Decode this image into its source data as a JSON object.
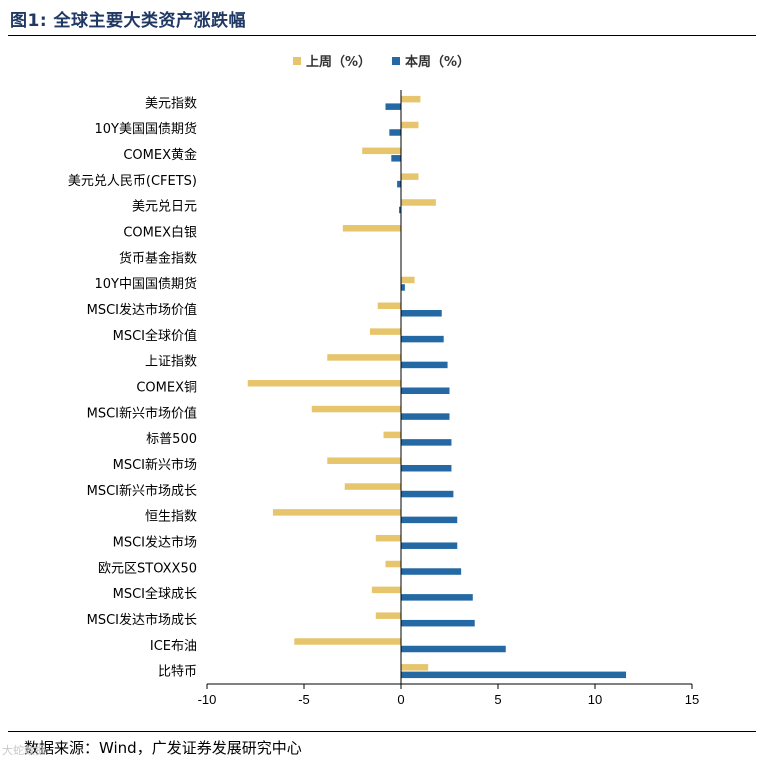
{
  "header": {
    "title": "图1:  全球主要大类资产涨跌幅"
  },
  "footer": {
    "source": "数据来源：Wind，广发证券发展研究中心",
    "watermark": "大蛇数据"
  },
  "colors": {
    "series_prev": "#E6C56C",
    "series_curr": "#2469A3",
    "title": "#1F3864"
  },
  "chart_data": {
    "type": "bar",
    "orientation": "horizontal",
    "categories": [
      "美元指数",
      "10Y美国国债期货",
      "COMEX黄金",
      "美元兑人民币(CFETS)",
      "美元兑日元",
      "COMEX白银",
      "货币基金指数",
      "10Y中国国债期货",
      "MSCI发达市场价值",
      "MSCI全球价值",
      "上证指数",
      "COMEX铜",
      "MSCI新兴市场价值",
      "标普500",
      "MSCI新兴市场",
      "MSCI新兴市场成长",
      "恒生指数",
      "MSCI发达市场",
      "欧元区STOXX50",
      "MSCI全球成长",
      "MSCI发达市场成长",
      "ICE布油",
      "比特币"
    ],
    "series": [
      {
        "name": "上周（%）",
        "values": [
          1.0,
          0.9,
          -2.0,
          0.9,
          1.8,
          -3.0,
          0.0,
          0.7,
          -1.2,
          -1.6,
          -3.8,
          -7.9,
          -4.6,
          -0.9,
          -3.8,
          -2.9,
          -6.6,
          -1.3,
          -0.8,
          -1.5,
          -1.3,
          -5.5,
          1.4
        ]
      },
      {
        "name": "本周（%）",
        "values": [
          -0.8,
          -0.6,
          -0.5,
          -0.2,
          -0.1,
          0.0,
          0.0,
          0.2,
          2.1,
          2.2,
          2.4,
          2.5,
          2.5,
          2.6,
          2.6,
          2.7,
          2.9,
          2.9,
          3.1,
          3.7,
          3.8,
          5.4,
          11.6
        ]
      }
    ],
    "xlim": [
      -10,
      15
    ],
    "xticks": [
      -10,
      -5,
      0,
      5,
      10,
      15
    ],
    "legend": "top-center",
    "grid": false
  }
}
